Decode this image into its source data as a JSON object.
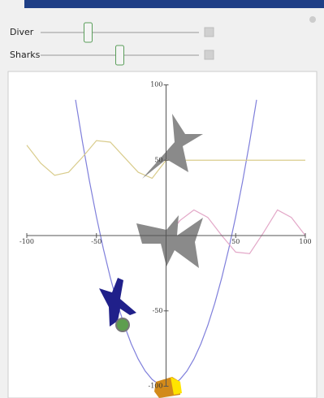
{
  "controls": [
    {
      "label": "Diver",
      "value": 0.3
    },
    {
      "label": "Sharks",
      "value": 0.5
    }
  ],
  "chart_data": {
    "type": "line",
    "xlim": [
      -100,
      100
    ],
    "ylim": [
      -100,
      100
    ],
    "xticks": [
      -100,
      -50,
      50,
      100
    ],
    "yticks": [
      100,
      50,
      -50,
      -100
    ],
    "series": [
      {
        "color": "#7f7fdb",
        "x": [
          -65,
          -60,
          -55,
          -50,
          -45,
          -40,
          -35,
          -30,
          -25,
          -20,
          -15,
          -10,
          -5,
          0,
          5,
          10,
          15,
          20,
          25,
          30,
          35,
          40,
          45,
          50,
          55,
          60,
          65
        ],
        "values": [
          90.1,
          62,
          36.1,
          12.5,
          -8.9,
          -28,
          -44.9,
          -59.5,
          -71.9,
          -82,
          -89.9,
          -95.5,
          -98.9,
          -100,
          -98.9,
          -95.5,
          -89.9,
          -82,
          -71.9,
          -59.5,
          -44.9,
          -28,
          -8.9,
          12.5,
          36.1,
          62,
          90.1
        ]
      },
      {
        "color": "#d9cc8c",
        "x": [
          -100,
          -90,
          -80,
          -70,
          -60,
          -50,
          -40,
          -30,
          -20,
          -10,
          0,
          100
        ],
        "values": [
          60,
          48,
          40,
          42,
          52,
          63,
          62,
          52,
          42,
          38,
          50,
          50
        ]
      },
      {
        "color": "#e3a8c8",
        "x": [
          0,
          10,
          20,
          30,
          40,
          50,
          60,
          70,
          80,
          90,
          100
        ],
        "values": [
          -2,
          10,
          17,
          12,
          0,
          -11,
          -12,
          2,
          17,
          12,
          0
        ]
      }
    ]
  }
}
